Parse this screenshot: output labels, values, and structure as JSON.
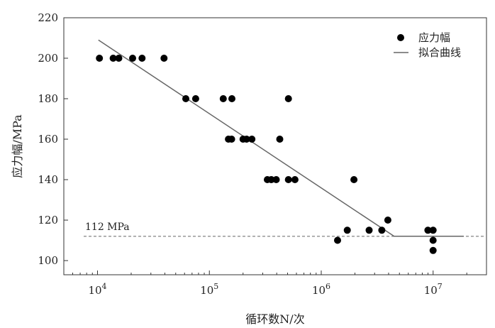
{
  "chart_data": {
    "type": "scatter",
    "xlabel": "循环数N/次",
    "ylabel": "应力幅/MPa",
    "xscale": "log",
    "xlim": [
      5000,
      30000000
    ],
    "ylim": [
      93,
      220
    ],
    "grid": false,
    "legend_position": "top-right",
    "x_ticks": [
      10000,
      100000,
      1000000,
      10000000
    ],
    "x_tick_labels": [
      {
        "base": "10",
        "exp": "4"
      },
      {
        "base": "10",
        "exp": "5"
      },
      {
        "base": "10",
        "exp": "6"
      },
      {
        "base": "10",
        "exp": "7"
      }
    ],
    "y_ticks": [
      100,
      120,
      140,
      160,
      180,
      200,
      220
    ],
    "y_tick_labels": [
      "100",
      "120",
      "140",
      "160",
      "180",
      "200",
      "220"
    ],
    "series": [
      {
        "name": "应力幅",
        "kind": "scatter",
        "color": "#000000",
        "points": [
          [
            10400,
            200
          ],
          [
            13800,
            200
          ],
          [
            15500,
            200
          ],
          [
            20600,
            200
          ],
          [
            25000,
            200
          ],
          [
            39300,
            200
          ],
          [
            61600,
            180
          ],
          [
            75400,
            180
          ],
          [
            133000,
            180
          ],
          [
            159000,
            180
          ],
          [
            148000,
            160
          ],
          [
            158000,
            160
          ],
          [
            200000,
            160
          ],
          [
            215000,
            160
          ],
          [
            240000,
            160
          ],
          [
            330000,
            140
          ],
          [
            358000,
            140
          ],
          [
            396000,
            140
          ],
          [
            426000,
            160
          ],
          [
            509000,
            180
          ],
          [
            509000,
            140
          ],
          [
            582000,
            140
          ],
          [
            1400000,
            110
          ],
          [
            1710000,
            115
          ],
          [
            1960000,
            140
          ],
          [
            2680000,
            115
          ],
          [
            3480000,
            115
          ],
          [
            3940000,
            120
          ],
          [
            8990000,
            115
          ],
          [
            9990000,
            115
          ],
          [
            10000000,
            110
          ],
          [
            10000000,
            105
          ]
        ]
      },
      {
        "name": "拟合曲线",
        "kind": "line",
        "color": "#666666",
        "points": [
          [
            10200,
            209
          ],
          [
            4480000,
            112
          ],
          [
            18800000,
            112
          ]
        ]
      }
    ],
    "reference_line": {
      "y": 112,
      "label": "112 MPa",
      "style": "dashed",
      "color": "#666666"
    }
  }
}
